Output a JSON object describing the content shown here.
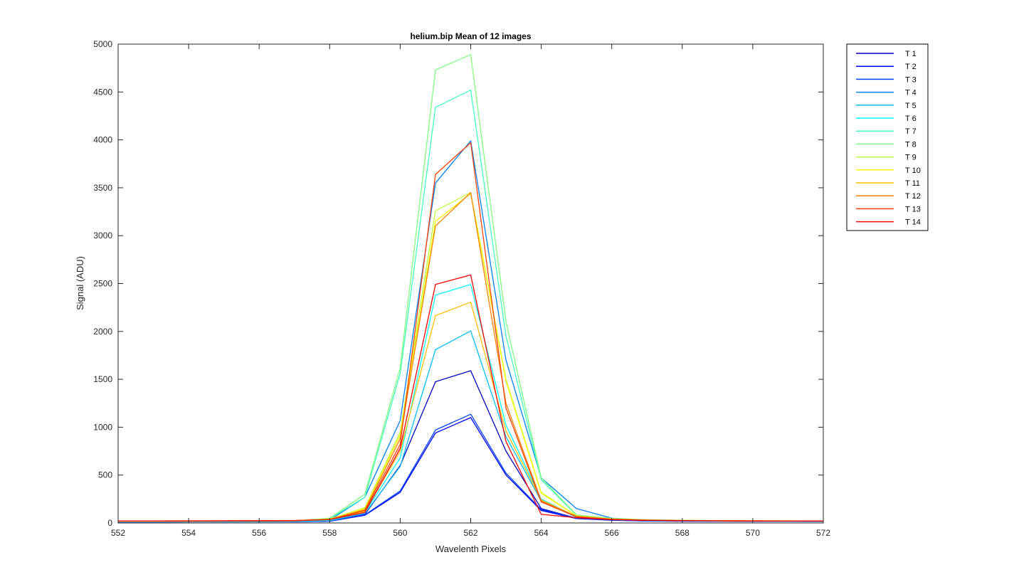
{
  "chart_data": {
    "type": "line",
    "title": "helium.bip  Mean of 12 images",
    "xlabel": "Wavelenth Pixels",
    "ylabel": "Signal (ADU)",
    "xlim": [
      552,
      572
    ],
    "ylim": [
      0,
      5000
    ],
    "xticks": [
      "552",
      "554",
      "556",
      "558",
      "560",
      "562",
      "564",
      "566",
      "568",
      "570",
      "572"
    ],
    "yticks": [
      "0",
      "500",
      "1000",
      "1500",
      "2000",
      "2500",
      "3000",
      "3500",
      "4000",
      "4500",
      "5000"
    ],
    "grid": false,
    "legend_position": "outside-top-right",
    "x": [
      552,
      553,
      554,
      555,
      556,
      557,
      558,
      559,
      560,
      561,
      562,
      563,
      564,
      565,
      566,
      567,
      568,
      569,
      570,
      571,
      572
    ],
    "series": [
      {
        "name": "T 1",
        "color": "#0000bf",
        "values": [
          12,
          12,
          13,
          13,
          14,
          15,
          20,
          90,
          600,
          1475,
          1590,
          750,
          150,
          50,
          30,
          22,
          20,
          18,
          18,
          17,
          17
        ]
      },
      {
        "name": "T 2",
        "color": "#0000ff",
        "values": [
          10,
          10,
          11,
          11,
          12,
          13,
          18,
          80,
          320,
          940,
          1100,
          500,
          130,
          45,
          28,
          20,
          18,
          17,
          16,
          16,
          15
        ]
      },
      {
        "name": "T 3",
        "color": "#0040ff",
        "values": [
          11,
          11,
          12,
          12,
          13,
          14,
          19,
          85,
          335,
          970,
          1135,
          520,
          140,
          48,
          30,
          21,
          19,
          18,
          17,
          17,
          16
        ]
      },
      {
        "name": "T 4",
        "color": "#0080ff",
        "values": [
          15,
          15,
          16,
          17,
          18,
          20,
          30,
          270,
          1070,
          3550,
          3990,
          1700,
          470,
          150,
          50,
          30,
          25,
          22,
          20,
          19,
          19
        ]
      },
      {
        "name": "T 5",
        "color": "#00bfff",
        "values": [
          13,
          13,
          14,
          15,
          16,
          18,
          25,
          100,
          590,
          1810,
          2005,
          900,
          230,
          60,
          35,
          25,
          22,
          20,
          19,
          18,
          18
        ]
      },
      {
        "name": "T 6",
        "color": "#00ffff",
        "values": [
          14,
          14,
          15,
          16,
          17,
          19,
          27,
          110,
          680,
          2380,
          2490,
          1020,
          250,
          65,
          38,
          27,
          23,
          21,
          20,
          19,
          19
        ]
      },
      {
        "name": "T 7",
        "color": "#40ffbf",
        "values": [
          16,
          16,
          17,
          18,
          19,
          21,
          45,
          270,
          1560,
          4340,
          4520,
          1950,
          450,
          80,
          45,
          32,
          27,
          24,
          22,
          21,
          21
        ]
      },
      {
        "name": "T 8",
        "color": "#80ff80",
        "values": [
          17,
          17,
          18,
          19,
          20,
          22,
          50,
          300,
          1620,
          4730,
          4890,
          2100,
          470,
          85,
          48,
          34,
          28,
          25,
          23,
          22,
          22
        ]
      },
      {
        "name": "T 9",
        "color": "#bfff40",
        "values": [
          18,
          18,
          19,
          20,
          21,
          23,
          40,
          160,
          950,
          3260,
          3450,
          1500,
          320,
          75,
          42,
          30,
          26,
          23,
          22,
          21,
          21
        ]
      },
      {
        "name": "T 10",
        "color": "#ffff00",
        "values": [
          18,
          18,
          19,
          20,
          21,
          23,
          40,
          150,
          920,
          3150,
          3440,
          1480,
          310,
          73,
          41,
          30,
          26,
          23,
          22,
          21,
          21
        ]
      },
      {
        "name": "T 11",
        "color": "#ffbf00",
        "values": [
          17,
          17,
          18,
          19,
          20,
          22,
          35,
          120,
          750,
          2165,
          2305,
          960,
          240,
          68,
          38,
          28,
          24,
          22,
          21,
          20,
          20
        ]
      },
      {
        "name": "T 12",
        "color": "#ff8000",
        "values": [
          19,
          19,
          20,
          21,
          22,
          24,
          38,
          140,
          880,
          3100,
          3450,
          1250,
          230,
          70,
          40,
          30,
          26,
          23,
          22,
          21,
          21
        ]
      },
      {
        "name": "T 13",
        "color": "#ff4000",
        "values": [
          20,
          20,
          21,
          22,
          23,
          25,
          36,
          130,
          820,
          3640,
          3970,
          1200,
          220,
          65,
          38,
          28,
          25,
          23,
          22,
          21,
          21
        ]
      },
      {
        "name": "T 14",
        "color": "#ff0000",
        "values": [
          21,
          21,
          22,
          23,
          24,
          26,
          34,
          110,
          780,
          2490,
          2590,
          850,
          90,
          55,
          35,
          27,
          24,
          22,
          21,
          20,
          20
        ]
      }
    ]
  }
}
